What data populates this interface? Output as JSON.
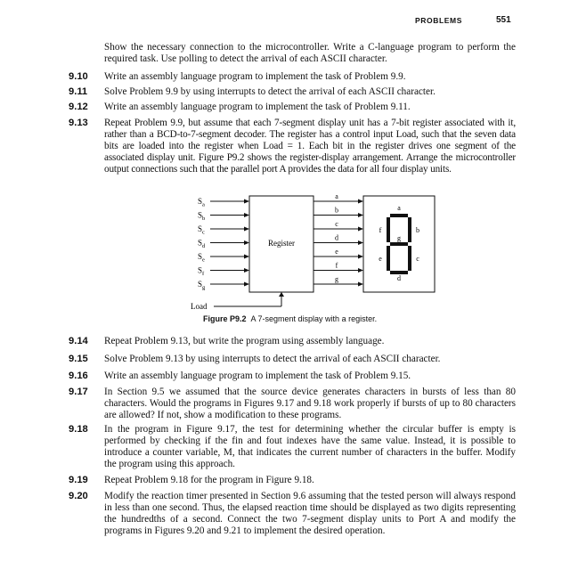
{
  "header": {
    "running_head": "PROBLEMS",
    "page_number": "551"
  },
  "intro": {
    "text": "Show the necessary connection to the microcontroller. Write a C-language program to perform the required task. Use polling to detect the arrival of each ASCII character."
  },
  "problems_top": [
    {
      "number": "9.10",
      "text": "Write an assembly language program to implement the task of Problem 9.9."
    },
    {
      "number": "9.11",
      "text": "Solve Problem 9.9 by using interrupts to detect the arrival of each ASCII character."
    },
    {
      "number": "9.12",
      "text": "Write an assembly language program to implement the task of Problem 9.11."
    },
    {
      "number": "9.13",
      "text": "Repeat Problem 9.9, but assume that each 7-segment display unit has a 7-bit register associated with it, rather than a BCD-to-7-segment decoder. The register has a control input Load, such that the seven data bits are loaded into the register when Load = 1. Each bit in the register drives one segment of the associated display unit. Figure P9.2 shows the register-display arrangement. Arrange the microcontroller output connections such that the parallel port A provides the data for all four display units."
    }
  ],
  "figure": {
    "inputs": [
      "Sa",
      "Sb",
      "Sc",
      "Sd",
      "Se",
      "Sf",
      "Sg"
    ],
    "input_base": "S",
    "input_subs": [
      "a",
      "b",
      "c",
      "d",
      "e",
      "f",
      "g"
    ],
    "outputs": [
      "a",
      "b",
      "c",
      "d",
      "e",
      "f",
      "g"
    ],
    "register_label": "Register",
    "load_label": "Load",
    "segments": [
      "a",
      "b",
      "c",
      "d",
      "e",
      "f",
      "g"
    ],
    "caption_label": "Figure P9.2",
    "caption_text": "A 7-segment display with a register."
  },
  "problems_bottom": [
    {
      "number": "9.14",
      "text": "Repeat Problem 9.13, but write the program using assembly language."
    },
    {
      "number": "9.15",
      "text": "Solve Problem 9.13 by using interrupts to detect the arrival of each ASCII character."
    },
    {
      "number": "9.16",
      "text": "Write an assembly language program to implement the task of Problem 9.15."
    },
    {
      "number": "9.17",
      "text": "In Section 9.5 we assumed that the source device generates characters in bursts of less than 80 characters. Would the programs in Figures 9.17 and 9.18 work properly if bursts of up to 80 characters are allowed? If not, show a modification to these programs."
    },
    {
      "number": "9.18",
      "text": "In the program in Figure 9.17, the test for determining whether the circular buffer is empty is performed by checking if the fin and fout indexes have the same value. Instead, it is possible to introduce a counter variable, M, that indicates the current number of characters in the buffer. Modify the program using this approach."
    },
    {
      "number": "9.19",
      "text": "Repeat Problem 9.18 for the program in Figure 9.18."
    },
    {
      "number": "9.20",
      "text": "Modify the reaction timer presented in Section 9.6 assuming that the tested person will always respond in less than one second. Thus, the elapsed reaction time should be displayed as two digits representing the hundredths of a second. Connect the two 7-segment display units to Port A and modify the programs in Figures 9.20 and 9.21 to implement the desired operation."
    }
  ]
}
